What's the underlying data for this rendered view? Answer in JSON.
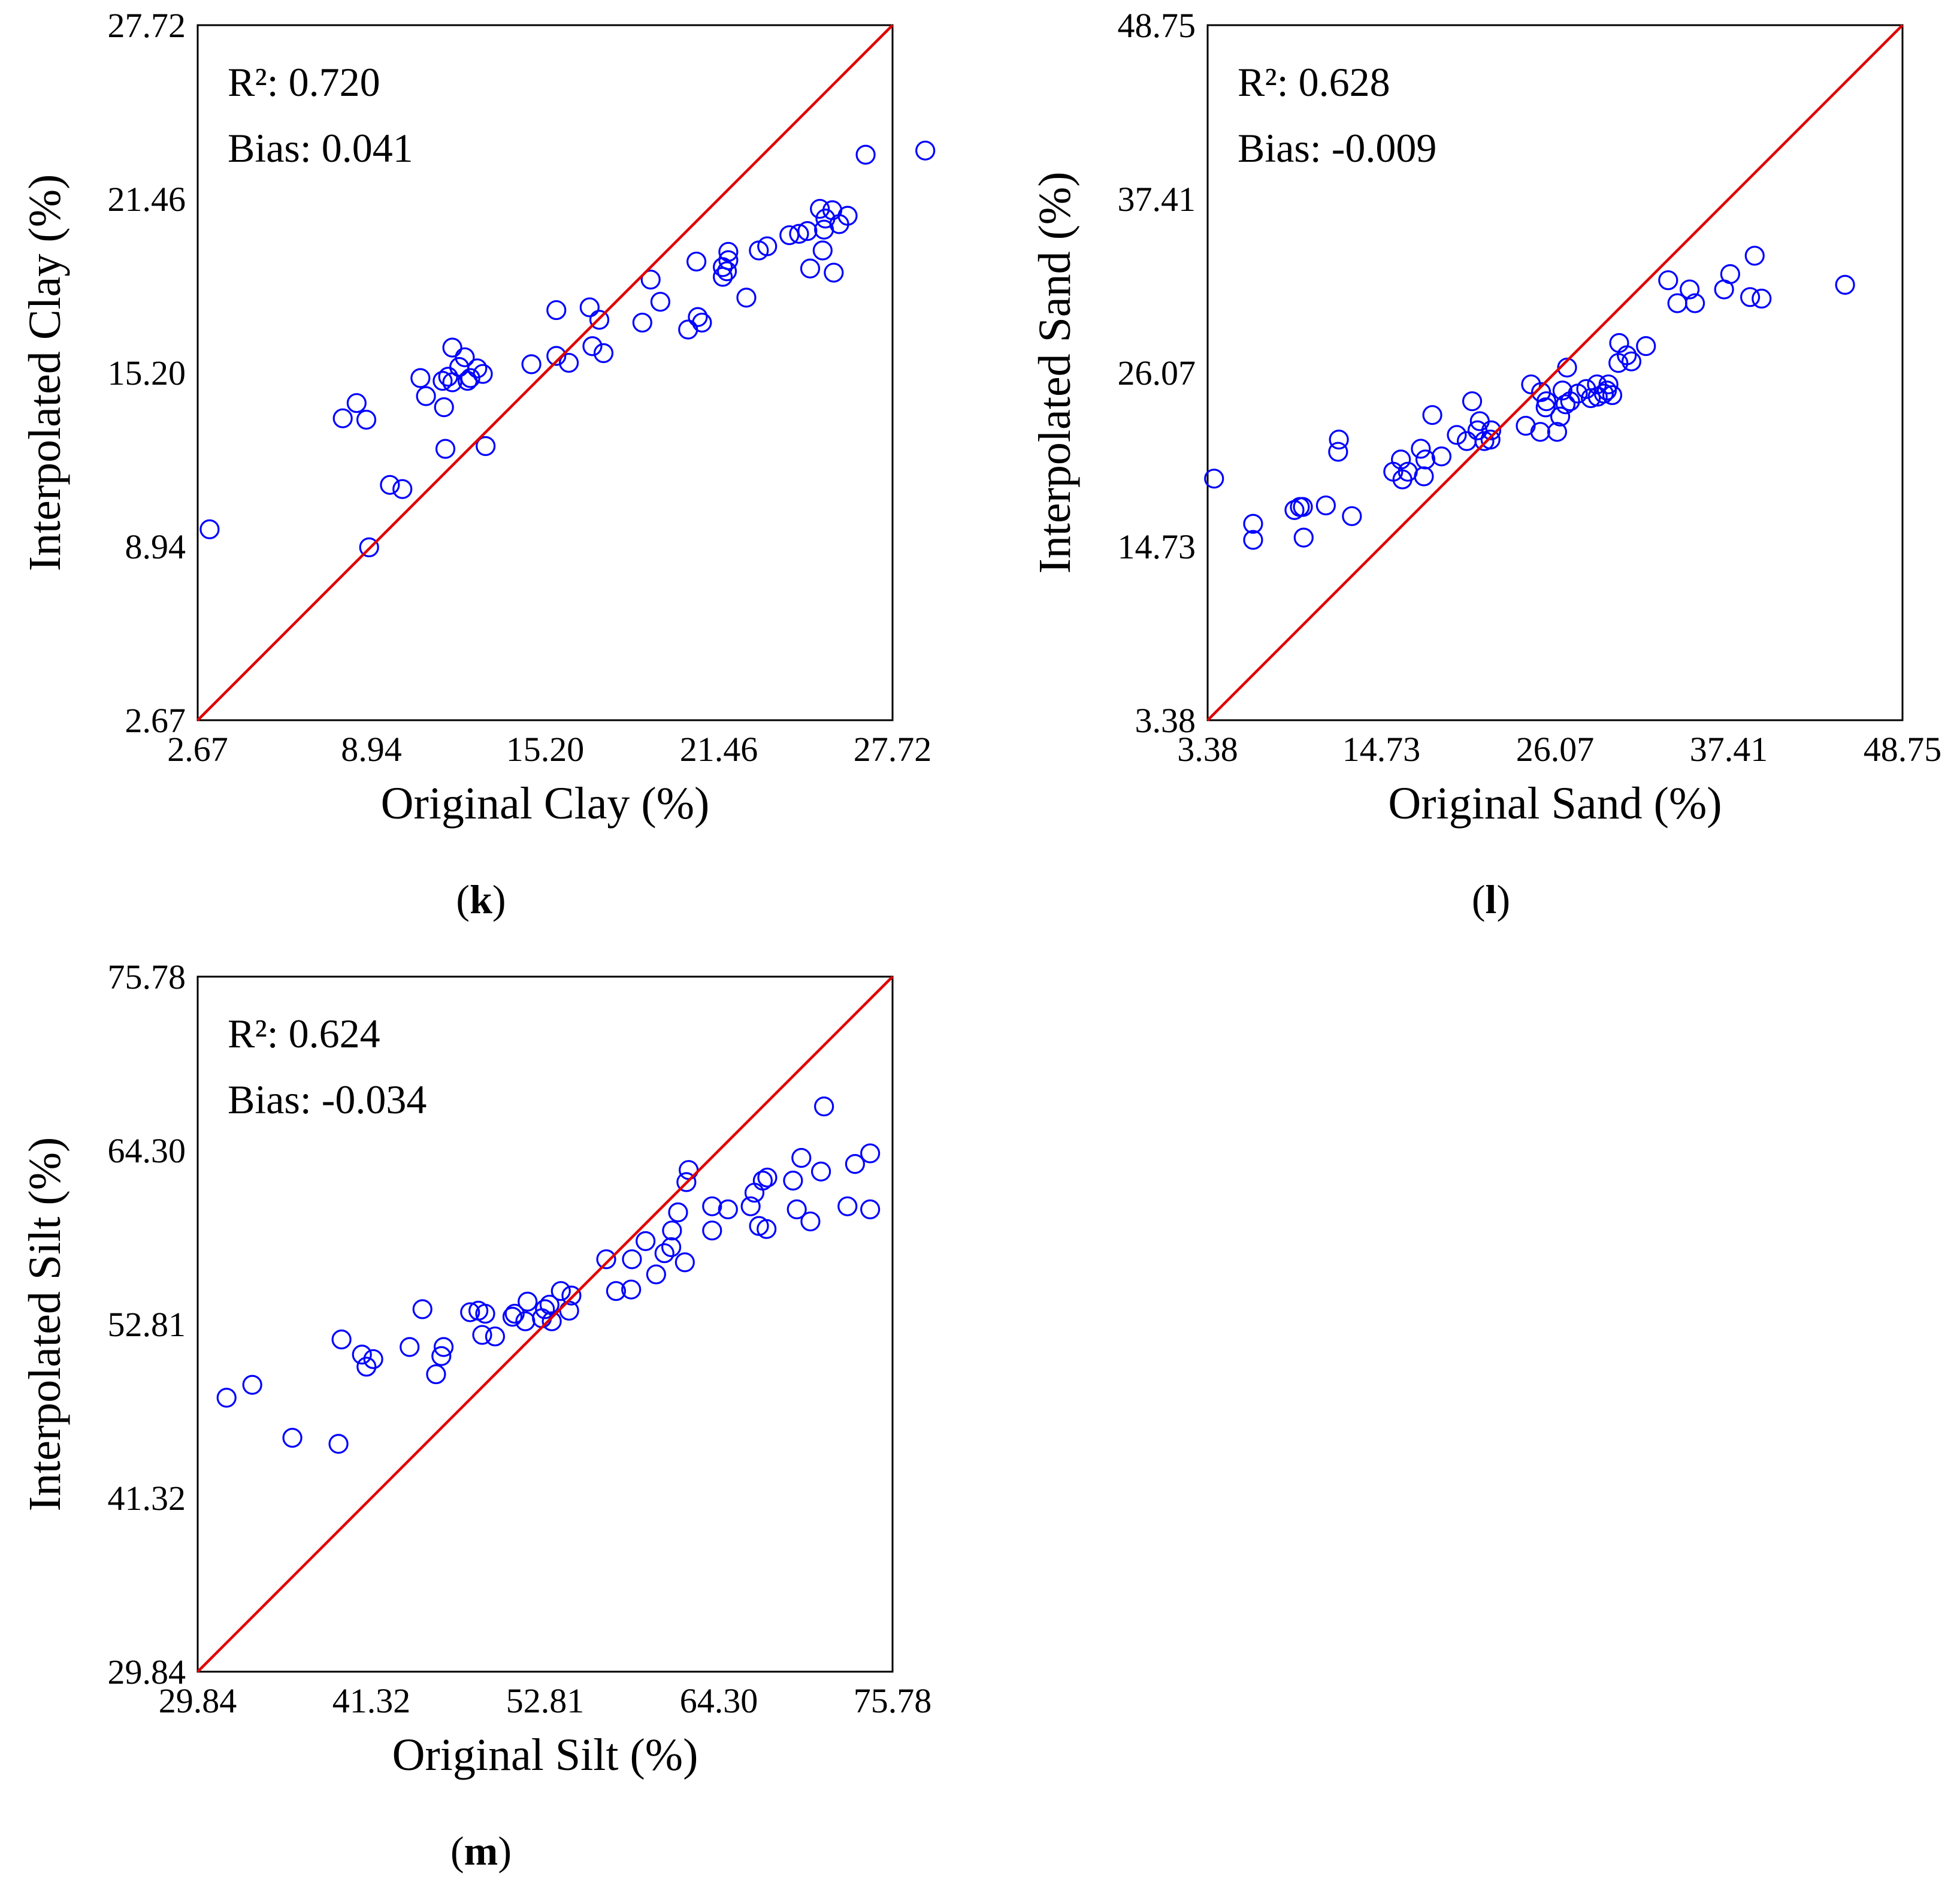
{
  "chart_data": [
    {
      "type": "scatter",
      "panel_label": "k",
      "xlabel": "Original Clay (%)",
      "ylabel": "Interpolated Clay (%)",
      "xlim": [
        2.67,
        27.72
      ],
      "ylim": [
        2.67,
        27.72
      ],
      "xticks": [
        "2.67",
        "8.94",
        "15.20",
        "21.46",
        "27.72"
      ],
      "yticks": [
        "2.67",
        "8.94",
        "15.20",
        "21.46",
        "27.72"
      ],
      "annotations": [
        "R²: 0.720",
        "Bias: 0.041"
      ],
      "reference_line": "1:1",
      "colors": {
        "points": "#0000ff",
        "line": "#e00000"
      },
      "points": [
        [
          3.1,
          9.55
        ],
        [
          7.9,
          13.55
        ],
        [
          8.4,
          14.1
        ],
        [
          8.75,
          13.5
        ],
        [
          8.85,
          8.9
        ],
        [
          9.6,
          11.15
        ],
        [
          10.05,
          11.0
        ],
        [
          10.7,
          15.0
        ],
        [
          10.9,
          14.35
        ],
        [
          11.55,
          13.95
        ],
        [
          11.6,
          12.45
        ],
        [
          11.5,
          14.9
        ],
        [
          11.7,
          15.05
        ],
        [
          11.85,
          14.85
        ],
        [
          11.85,
          16.1
        ],
        [
          12.1,
          15.4
        ],
        [
          12.3,
          15.75
        ],
        [
          12.4,
          14.9
        ],
        [
          12.5,
          15.0
        ],
        [
          12.75,
          15.35
        ],
        [
          12.95,
          15.15
        ],
        [
          13.05,
          12.55
        ],
        [
          14.7,
          15.5
        ],
        [
          15.6,
          15.8
        ],
        [
          15.6,
          17.45
        ],
        [
          16.05,
          15.55
        ],
        [
          16.8,
          17.55
        ],
        [
          16.9,
          16.15
        ],
        [
          17.15,
          17.1
        ],
        [
          17.3,
          15.9
        ],
        [
          18.7,
          17.0
        ],
        [
          19.0,
          18.55
        ],
        [
          19.35,
          17.75
        ],
        [
          20.35,
          16.75
        ],
        [
          20.65,
          19.2
        ],
        [
          20.7,
          17.2
        ],
        [
          20.85,
          17.0
        ],
        [
          21.6,
          19.0
        ],
        [
          21.6,
          18.65
        ],
        [
          21.8,
          19.25
        ],
        [
          21.8,
          19.55
        ],
        [
          21.75,
          18.85
        ],
        [
          22.45,
          17.9
        ],
        [
          22.9,
          19.6
        ],
        [
          23.2,
          19.75
        ],
        [
          24.0,
          20.15
        ],
        [
          24.35,
          20.2
        ],
        [
          24.65,
          20.3
        ],
        [
          24.75,
          18.95
        ],
        [
          25.1,
          21.1
        ],
        [
          25.2,
          19.6
        ],
        [
          25.25,
          20.35
        ],
        [
          25.3,
          20.75
        ],
        [
          25.55,
          21.05
        ],
        [
          25.6,
          18.8
        ],
        [
          25.8,
          20.55
        ],
        [
          26.1,
          20.85
        ],
        [
          26.75,
          23.05
        ],
        [
          28.9,
          23.2
        ]
      ]
    },
    {
      "type": "scatter",
      "panel_label": "l",
      "xlabel": "Original Sand (%)",
      "ylabel": "Interpolated Sand (%)",
      "xlim": [
        3.38,
        48.75
      ],
      "ylim": [
        3.38,
        48.75
      ],
      "xticks": [
        "3.38",
        "14.73",
        "26.07",
        "37.41",
        "48.75"
      ],
      "yticks": [
        "3.38",
        "14.73",
        "26.07",
        "37.41",
        "48.75"
      ],
      "annotations": [
        "R²: 0.628",
        "Bias: -0.009"
      ],
      "reference_line": "1:1",
      "colors": {
        "points": "#0000ff",
        "line": "#e00000"
      },
      "points": [
        [
          3.8,
          19.15
        ],
        [
          6.35,
          16.2
        ],
        [
          6.35,
          15.15
        ],
        [
          9.05,
          17.1
        ],
        [
          9.4,
          17.3
        ],
        [
          9.6,
          17.3
        ],
        [
          9.65,
          15.3
        ],
        [
          11.1,
          17.4
        ],
        [
          11.9,
          20.9
        ],
        [
          11.95,
          21.7
        ],
        [
          12.8,
          16.7
        ],
        [
          15.5,
          19.6
        ],
        [
          16.0,
          20.4
        ],
        [
          16.1,
          19.1
        ],
        [
          16.45,
          19.6
        ],
        [
          17.3,
          21.1
        ],
        [
          17.5,
          19.3
        ],
        [
          17.6,
          20.4
        ],
        [
          18.05,
          23.3
        ],
        [
          18.65,
          20.6
        ],
        [
          19.65,
          22.0
        ],
        [
          20.3,
          21.6
        ],
        [
          20.65,
          24.2
        ],
        [
          21.0,
          22.3
        ],
        [
          21.15,
          22.9
        ],
        [
          21.45,
          21.6
        ],
        [
          21.85,
          21.7
        ],
        [
          21.9,
          22.3
        ],
        [
          24.15,
          22.6
        ],
        [
          24.5,
          25.3
        ],
        [
          25.15,
          24.8
        ],
        [
          25.1,
          22.2
        ],
        [
          25.45,
          23.8
        ],
        [
          25.5,
          24.2
        ],
        [
          26.2,
          22.2
        ],
        [
          26.4,
          23.2
        ],
        [
          26.55,
          24.9
        ],
        [
          26.75,
          24.0
        ],
        [
          26.85,
          26.4
        ],
        [
          27.05,
          24.2
        ],
        [
          27.55,
          24.7
        ],
        [
          28.1,
          25.0
        ],
        [
          28.4,
          24.4
        ],
        [
          28.8,
          25.3
        ],
        [
          28.85,
          24.5
        ],
        [
          29.25,
          24.7
        ],
        [
          29.45,
          24.9
        ],
        [
          29.55,
          25.3
        ],
        [
          29.8,
          24.6
        ],
        [
          30.2,
          26.7
        ],
        [
          30.25,
          28.0
        ],
        [
          30.75,
          27.2
        ],
        [
          31.05,
          26.8
        ],
        [
          32.0,
          27.8
        ],
        [
          33.45,
          32.1
        ],
        [
          34.05,
          30.6
        ],
        [
          34.85,
          31.5
        ],
        [
          35.2,
          30.6
        ],
        [
          37.1,
          31.5
        ],
        [
          37.5,
          32.5
        ],
        [
          38.8,
          31.0
        ],
        [
          39.1,
          33.7
        ],
        [
          39.55,
          30.9
        ],
        [
          45.0,
          31.8
        ]
      ]
    },
    {
      "type": "scatter",
      "panel_label": "m",
      "xlabel": "Original Silt (%)",
      "ylabel": "Interpolated Silt (%)",
      "xlim": [
        29.84,
        75.78
      ],
      "ylim": [
        29.84,
        75.78
      ],
      "xticks": [
        "29.84",
        "41.32",
        "52.81",
        "64.30",
        "75.78"
      ],
      "yticks": [
        "29.84",
        "41.32",
        "52.81",
        "64.30",
        "75.78"
      ],
      "annotations": [
        "R²: 0.624",
        "Bias: -0.034"
      ],
      "reference_line": "1:1",
      "colors": {
        "points": "#0000ff",
        "line": "#e00000"
      },
      "points": [
        [
          31.75,
          47.95
        ],
        [
          33.45,
          48.8
        ],
        [
          36.1,
          45.3
        ],
        [
          39.15,
          44.9
        ],
        [
          39.35,
          51.8
        ],
        [
          40.7,
          50.8
        ],
        [
          41.0,
          50.0
        ],
        [
          41.45,
          50.5
        ],
        [
          43.85,
          51.3
        ],
        [
          44.7,
          53.8
        ],
        [
          45.6,
          49.5
        ],
        [
          45.95,
          50.7
        ],
        [
          46.1,
          51.3
        ],
        [
          47.85,
          53.6
        ],
        [
          48.4,
          53.7
        ],
        [
          48.65,
          52.1
        ],
        [
          48.85,
          53.5
        ],
        [
          49.5,
          52.0
        ],
        [
          50.65,
          53.3
        ],
        [
          50.8,
          53.5
        ],
        [
          51.5,
          53.0
        ],
        [
          51.65,
          54.3
        ],
        [
          52.6,
          53.2
        ],
        [
          52.8,
          53.8
        ],
        [
          53.1,
          54.1
        ],
        [
          53.25,
          53.0
        ],
        [
          53.85,
          55.0
        ],
        [
          54.4,
          53.7
        ],
        [
          54.55,
          54.7
        ],
        [
          56.85,
          57.1
        ],
        [
          57.5,
          55.0
        ],
        [
          58.5,
          55.1
        ],
        [
          58.55,
          57.1
        ],
        [
          59.45,
          58.3
        ],
        [
          60.15,
          56.1
        ],
        [
          60.7,
          57.5
        ],
        [
          61.15,
          57.9
        ],
        [
          61.2,
          59.0
        ],
        [
          61.6,
          60.2
        ],
        [
          62.05,
          56.9
        ],
        [
          62.15,
          62.2
        ],
        [
          62.3,
          63.0
        ],
        [
          63.85,
          59.0
        ],
        [
          63.85,
          60.6
        ],
        [
          64.9,
          60.4
        ],
        [
          66.4,
          60.6
        ],
        [
          66.65,
          61.5
        ],
        [
          66.95,
          59.3
        ],
        [
          67.2,
          62.3
        ],
        [
          67.45,
          59.1
        ],
        [
          67.5,
          62.5
        ],
        [
          69.2,
          62.3
        ],
        [
          69.45,
          60.4
        ],
        [
          69.75,
          63.8
        ],
        [
          70.35,
          59.6
        ],
        [
          71.05,
          62.9
        ],
        [
          71.25,
          67.2
        ],
        [
          72.8,
          60.6
        ],
        [
          73.3,
          63.4
        ],
        [
          74.3,
          64.1
        ],
        [
          74.3,
          60.4
        ]
      ]
    }
  ]
}
